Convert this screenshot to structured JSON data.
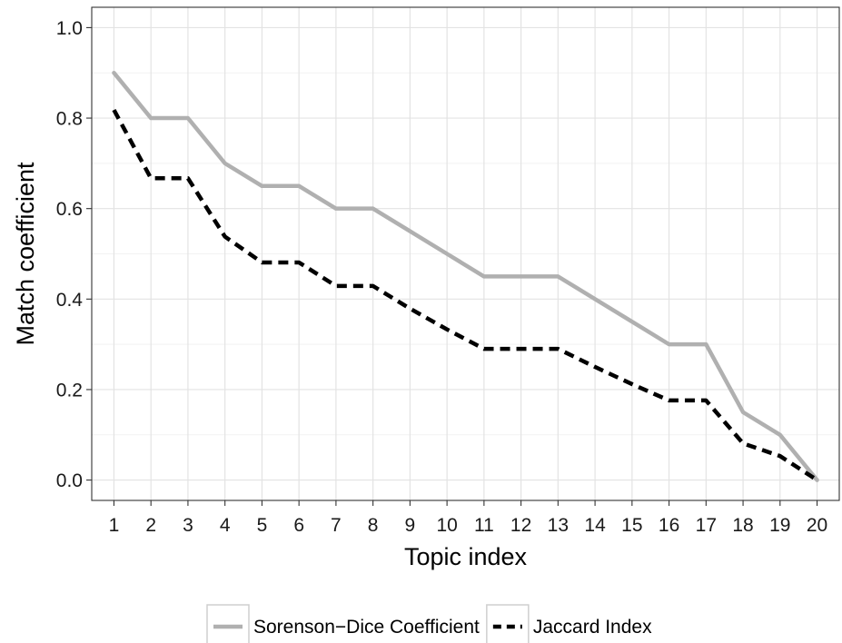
{
  "chart_data": {
    "type": "line",
    "xlabel": "Topic index",
    "ylabel": "Match coefficient",
    "x": [
      1,
      2,
      3,
      4,
      5,
      6,
      7,
      8,
      9,
      10,
      11,
      12,
      13,
      14,
      15,
      16,
      17,
      18,
      19,
      20
    ],
    "x_tick_labels": [
      "1",
      "2",
      "3",
      "4",
      "5",
      "6",
      "7",
      "8",
      "9",
      "10",
      "11",
      "12",
      "13",
      "14",
      "15",
      "16",
      "17",
      "18",
      "19",
      "20"
    ],
    "y_ticks": [
      0.0,
      0.2,
      0.4,
      0.6,
      0.8,
      1.0
    ],
    "y_tick_labels": [
      "0.0",
      "0.2",
      "0.4",
      "0.6",
      "0.8",
      "1.0"
    ],
    "xlim": [
      0.4,
      20.6
    ],
    "ylim": [
      -0.045,
      1.045
    ],
    "grid": true,
    "legend_position": "bottom",
    "series": [
      {
        "name": "Sorenson−Dice Coefficient",
        "color": "#b0b0b0",
        "line_style": "solid",
        "values": [
          0.9,
          0.8,
          0.8,
          0.7,
          0.65,
          0.65,
          0.6,
          0.6,
          0.55,
          0.5,
          0.45,
          0.45,
          0.45,
          0.4,
          0.35,
          0.3,
          0.3,
          0.15,
          0.1,
          0.0
        ]
      },
      {
        "name": "Jaccard Index",
        "color": "#000000",
        "line_style": "dashed",
        "values": [
          0.818,
          0.667,
          0.667,
          0.538,
          0.481,
          0.481,
          0.429,
          0.429,
          0.379,
          0.333,
          0.29,
          0.29,
          0.29,
          0.25,
          0.212,
          0.176,
          0.176,
          0.081,
          0.053,
          0.0
        ]
      }
    ]
  }
}
